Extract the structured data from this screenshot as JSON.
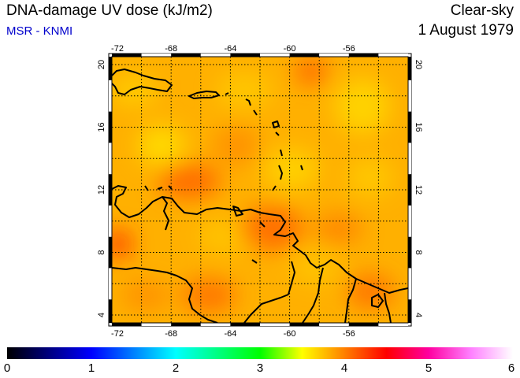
{
  "header": {
    "title": "DNA-damage UV dose (kJ/m2)",
    "credit": "MSR - KNMI",
    "sky_condition": "Clear-sky",
    "date": "1 August 1979"
  },
  "map": {
    "lon_range": [
      -72,
      -52
    ],
    "lat_range": [
      3.5,
      20.5
    ],
    "lon_ticks": [
      -72,
      -68,
      -64,
      -60,
      -56
    ],
    "lat_ticks": [
      4,
      8,
      12,
      16,
      20
    ],
    "lon_tick_labels": [
      "-72",
      "-68",
      "-64",
      "-60",
      "-56"
    ],
    "lat_tick_labels": [
      "4",
      "8",
      "12",
      "16",
      "20"
    ],
    "gridlines": true,
    "frame": "black-white segmented border",
    "field_colors": {
      "low": "#ffe000",
      "mid": "#ffb000",
      "high": "#ff5500"
    }
  },
  "colorbar": {
    "min": 0,
    "max": 6,
    "tick_labels": [
      "0",
      "1",
      "2",
      "3",
      "4",
      "5",
      "6"
    ],
    "stops": [
      {
        "value": 0,
        "color": "#000000"
      },
      {
        "value": 0.5,
        "color": "#000080"
      },
      {
        "value": 1,
        "color": "#0000ff"
      },
      {
        "value": 1.5,
        "color": "#0080ff"
      },
      {
        "value": 2,
        "color": "#00ffff"
      },
      {
        "value": 2.5,
        "color": "#00ff80"
      },
      {
        "value": 3,
        "color": "#00ff00"
      },
      {
        "value": 3.5,
        "color": "#ffff00"
      },
      {
        "value": 4,
        "color": "#ff8000"
      },
      {
        "value": 4.5,
        "color": "#ff0000"
      },
      {
        "value": 5,
        "color": "#ff00a0"
      },
      {
        "value": 5.5,
        "color": "#ff80ff"
      },
      {
        "value": 6,
        "color": "#ffffff"
      }
    ]
  }
}
